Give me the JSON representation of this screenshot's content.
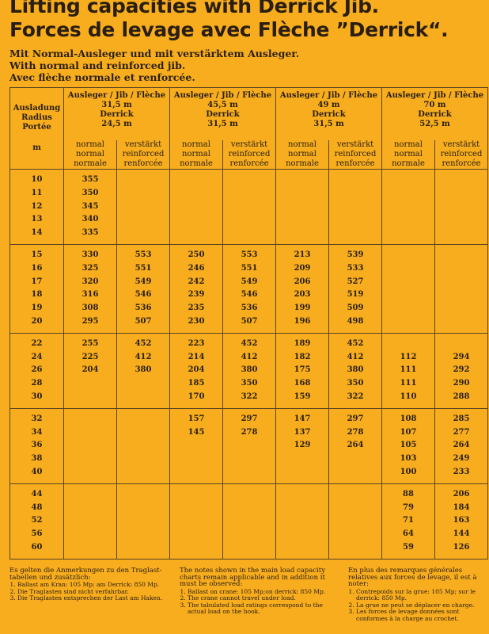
{
  "title": {
    "line1": "Lifting capacities with Derrick Jib.",
    "line2": "Forces de levage avec Flèche ”Derrick“."
  },
  "subtitle": [
    "Mit Normal-Ausleger und mit verstärktem Ausleger.",
    "With normal and reinforced jib.",
    "Avec flèche normale et renforcée."
  ],
  "table": {
    "radius_header": [
      "Ausladung",
      "Radius",
      "Portée",
      "m"
    ],
    "jib_label": "Ausleger / Jib / Flèche",
    "derrick_label": "Derrick",
    "configs": [
      {
        "jib": "31,5 m",
        "derrick": "24,5 m"
      },
      {
        "jib": "45,5 m",
        "derrick": "31,5 m"
      },
      {
        "jib": "49 m",
        "derrick": "31,5 m"
      },
      {
        "jib": "70 m",
        "derrick": "52,5 m"
      }
    ],
    "normal_label": [
      "normal",
      "normal",
      "normale"
    ],
    "reinforced_label": [
      "verstärkt",
      "reinforced",
      "renforcée"
    ],
    "groups": [
      [
        [
          "10",
          "355",
          "",
          "",
          "",
          "",
          "",
          "",
          ""
        ],
        [
          "11",
          "350",
          "",
          "",
          "",
          "",
          "",
          "",
          ""
        ],
        [
          "12",
          "345",
          "",
          "",
          "",
          "",
          "",
          "",
          ""
        ],
        [
          "13",
          "340",
          "",
          "",
          "",
          "",
          "",
          "",
          ""
        ],
        [
          "14",
          "335",
          "",
          "",
          "",
          "",
          "",
          "",
          ""
        ]
      ],
      [
        [
          "15",
          "330",
          "553",
          "250",
          "553",
          "213",
          "539",
          "",
          ""
        ],
        [
          "16",
          "325",
          "551",
          "246",
          "551",
          "209",
          "533",
          "",
          ""
        ],
        [
          "17",
          "320",
          "549",
          "242",
          "549",
          "206",
          "527",
          "",
          ""
        ],
        [
          "18",
          "316",
          "546",
          "239",
          "546",
          "203",
          "519",
          "",
          ""
        ],
        [
          "19",
          "308",
          "536",
          "235",
          "536",
          "199",
          "509",
          "",
          ""
        ],
        [
          "20",
          "295",
          "507",
          "230",
          "507",
          "196",
          "498",
          "",
          ""
        ]
      ],
      [
        [
          "22",
          "255",
          "452",
          "223",
          "452",
          "189",
          "452",
          "",
          ""
        ],
        [
          "24",
          "225",
          "412",
          "214",
          "412",
          "182",
          "412",
          "112",
          "294"
        ],
        [
          "26",
          "204",
          "380",
          "204",
          "380",
          "175",
          "380",
          "111",
          "292"
        ],
        [
          "28",
          "",
          "",
          "185",
          "350",
          "168",
          "350",
          "111",
          "290"
        ],
        [
          "30",
          "",
          "",
          "170",
          "322",
          "159",
          "322",
          "110",
          "288"
        ]
      ],
      [
        [
          "32",
          "",
          "",
          "157",
          "297",
          "147",
          "297",
          "108",
          "285"
        ],
        [
          "34",
          "",
          "",
          "145",
          "278",
          "137",
          "278",
          "107",
          "277"
        ],
        [
          "36",
          "",
          "",
          "",
          "",
          "129",
          "264",
          "105",
          "264"
        ],
        [
          "38",
          "",
          "",
          "",
          "",
          "",
          "",
          "103",
          "249"
        ],
        [
          "40",
          "",
          "",
          "",
          "",
          "",
          "",
          "100",
          "233"
        ]
      ],
      [
        [
          "44",
          "",
          "",
          "",
          "",
          "",
          "",
          "88",
          "206"
        ],
        [
          "48",
          "",
          "",
          "",
          "",
          "",
          "",
          "79",
          "184"
        ],
        [
          "52",
          "",
          "",
          "",
          "",
          "",
          "",
          "71",
          "163"
        ],
        [
          "56",
          "",
          "",
          "",
          "",
          "",
          "",
          "64",
          "144"
        ],
        [
          "60",
          "",
          "",
          "",
          "",
          "",
          "",
          "59",
          "126"
        ]
      ]
    ]
  },
  "notes": {
    "de": {
      "heading": "Es gelten die Anmerkungen zu den Traglast-tabellen und zusätzlich:",
      "items": [
        "Ballast am Kran: 105 Mp; am Derrick: 850 Mp.",
        "Die Traglasten sind nicht verfahrbar.",
        "Die Traglasten entsprechen der Last am Haken."
      ]
    },
    "en": {
      "heading": "The notes shown in the main load capacity charts remain applicable and in addition it must be observed:",
      "items": [
        "Ballast on crane: 105 Mp;on derrick: 850 Mp.",
        "The crane cannot travel under load.",
        "The tabulated load ratings correspond to the actual load on the hook."
      ]
    },
    "fr": {
      "heading": "En plus des remarques générales relatives aux forces de levage, il est à noter:",
      "items": [
        "Contrepoids sur la grue: 105 Mp; sur le derrick: 850 Mp.",
        "La grue ne peut se déplacer en charge.",
        "Les forces de levage données sont conformes à la charge au crochet."
      ]
    }
  },
  "colors": {
    "background": "#f8ad1f",
    "ink": "#2b2012",
    "rule": "#5a4420"
  }
}
